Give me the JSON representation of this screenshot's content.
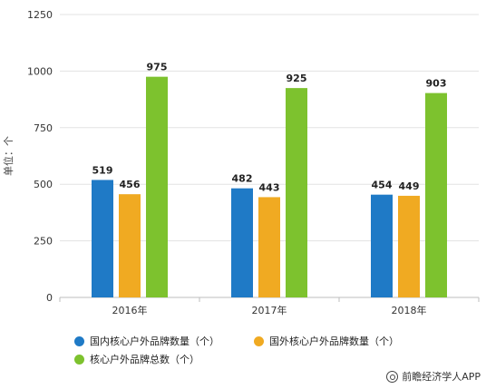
{
  "chart_data": {
    "type": "bar",
    "ylabel": "单位：个",
    "ylim": [
      0,
      1250
    ],
    "yticks": [
      0,
      250,
      500,
      750,
      1000,
      1250
    ],
    "categories": [
      "2016年",
      "2017年",
      "2018年"
    ],
    "series": [
      {
        "name": "国内核心户外品牌数量（个）",
        "color": "#1f7ac6",
        "values": [
          519,
          482,
          454
        ]
      },
      {
        "name": "国外核心户外品牌数量（个）",
        "color": "#f0aa22",
        "values": [
          456,
          443,
          449
        ]
      },
      {
        "name": "核心户外品牌总数（个）",
        "color": "#7dc22e",
        "values": [
          975,
          925,
          903
        ]
      }
    ],
    "legend_position": "bottom",
    "grid": true
  },
  "source": {
    "text": "前瞻经济学人APP",
    "icon": "source-logo-icon"
  }
}
